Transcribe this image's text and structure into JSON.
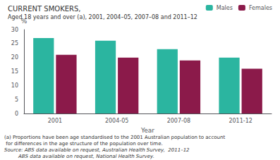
{
  "chart_data": {
    "type": "bar",
    "title": "CURRENT SMOKERS,",
    "subtitle": "Aged 18 years and over (a), 2001, 2004–05, 2007–08 and 2011–12",
    "x_label": "Year",
    "y_label": "%",
    "categories": [
      "2001",
      "2004-05",
      "2007-08",
      "2011-12"
    ],
    "series": [
      {
        "name": "Males",
        "color": "#2BB5A0",
        "values": [
          27,
          26,
          23,
          20
        ]
      },
      {
        "name": "Females",
        "color": "#8B1A4A",
        "values": [
          21,
          20,
          19,
          16
        ]
      }
    ],
    "ylim": [
      0,
      30
    ],
    "yticks": [
      0,
      5,
      10,
      15,
      20,
      25,
      30
    ],
    "grid": false,
    "legend": "upper right",
    "annotations": [
      "(a) Proportions have been age standardised to the 2001 Australian population to account",
      " for differences in the age structure of the population over time.",
      "Source: ABS data available on request, Australian Health Survey,  2011–12",
      "         ABS data available on request, National Health Survey."
    ]
  }
}
